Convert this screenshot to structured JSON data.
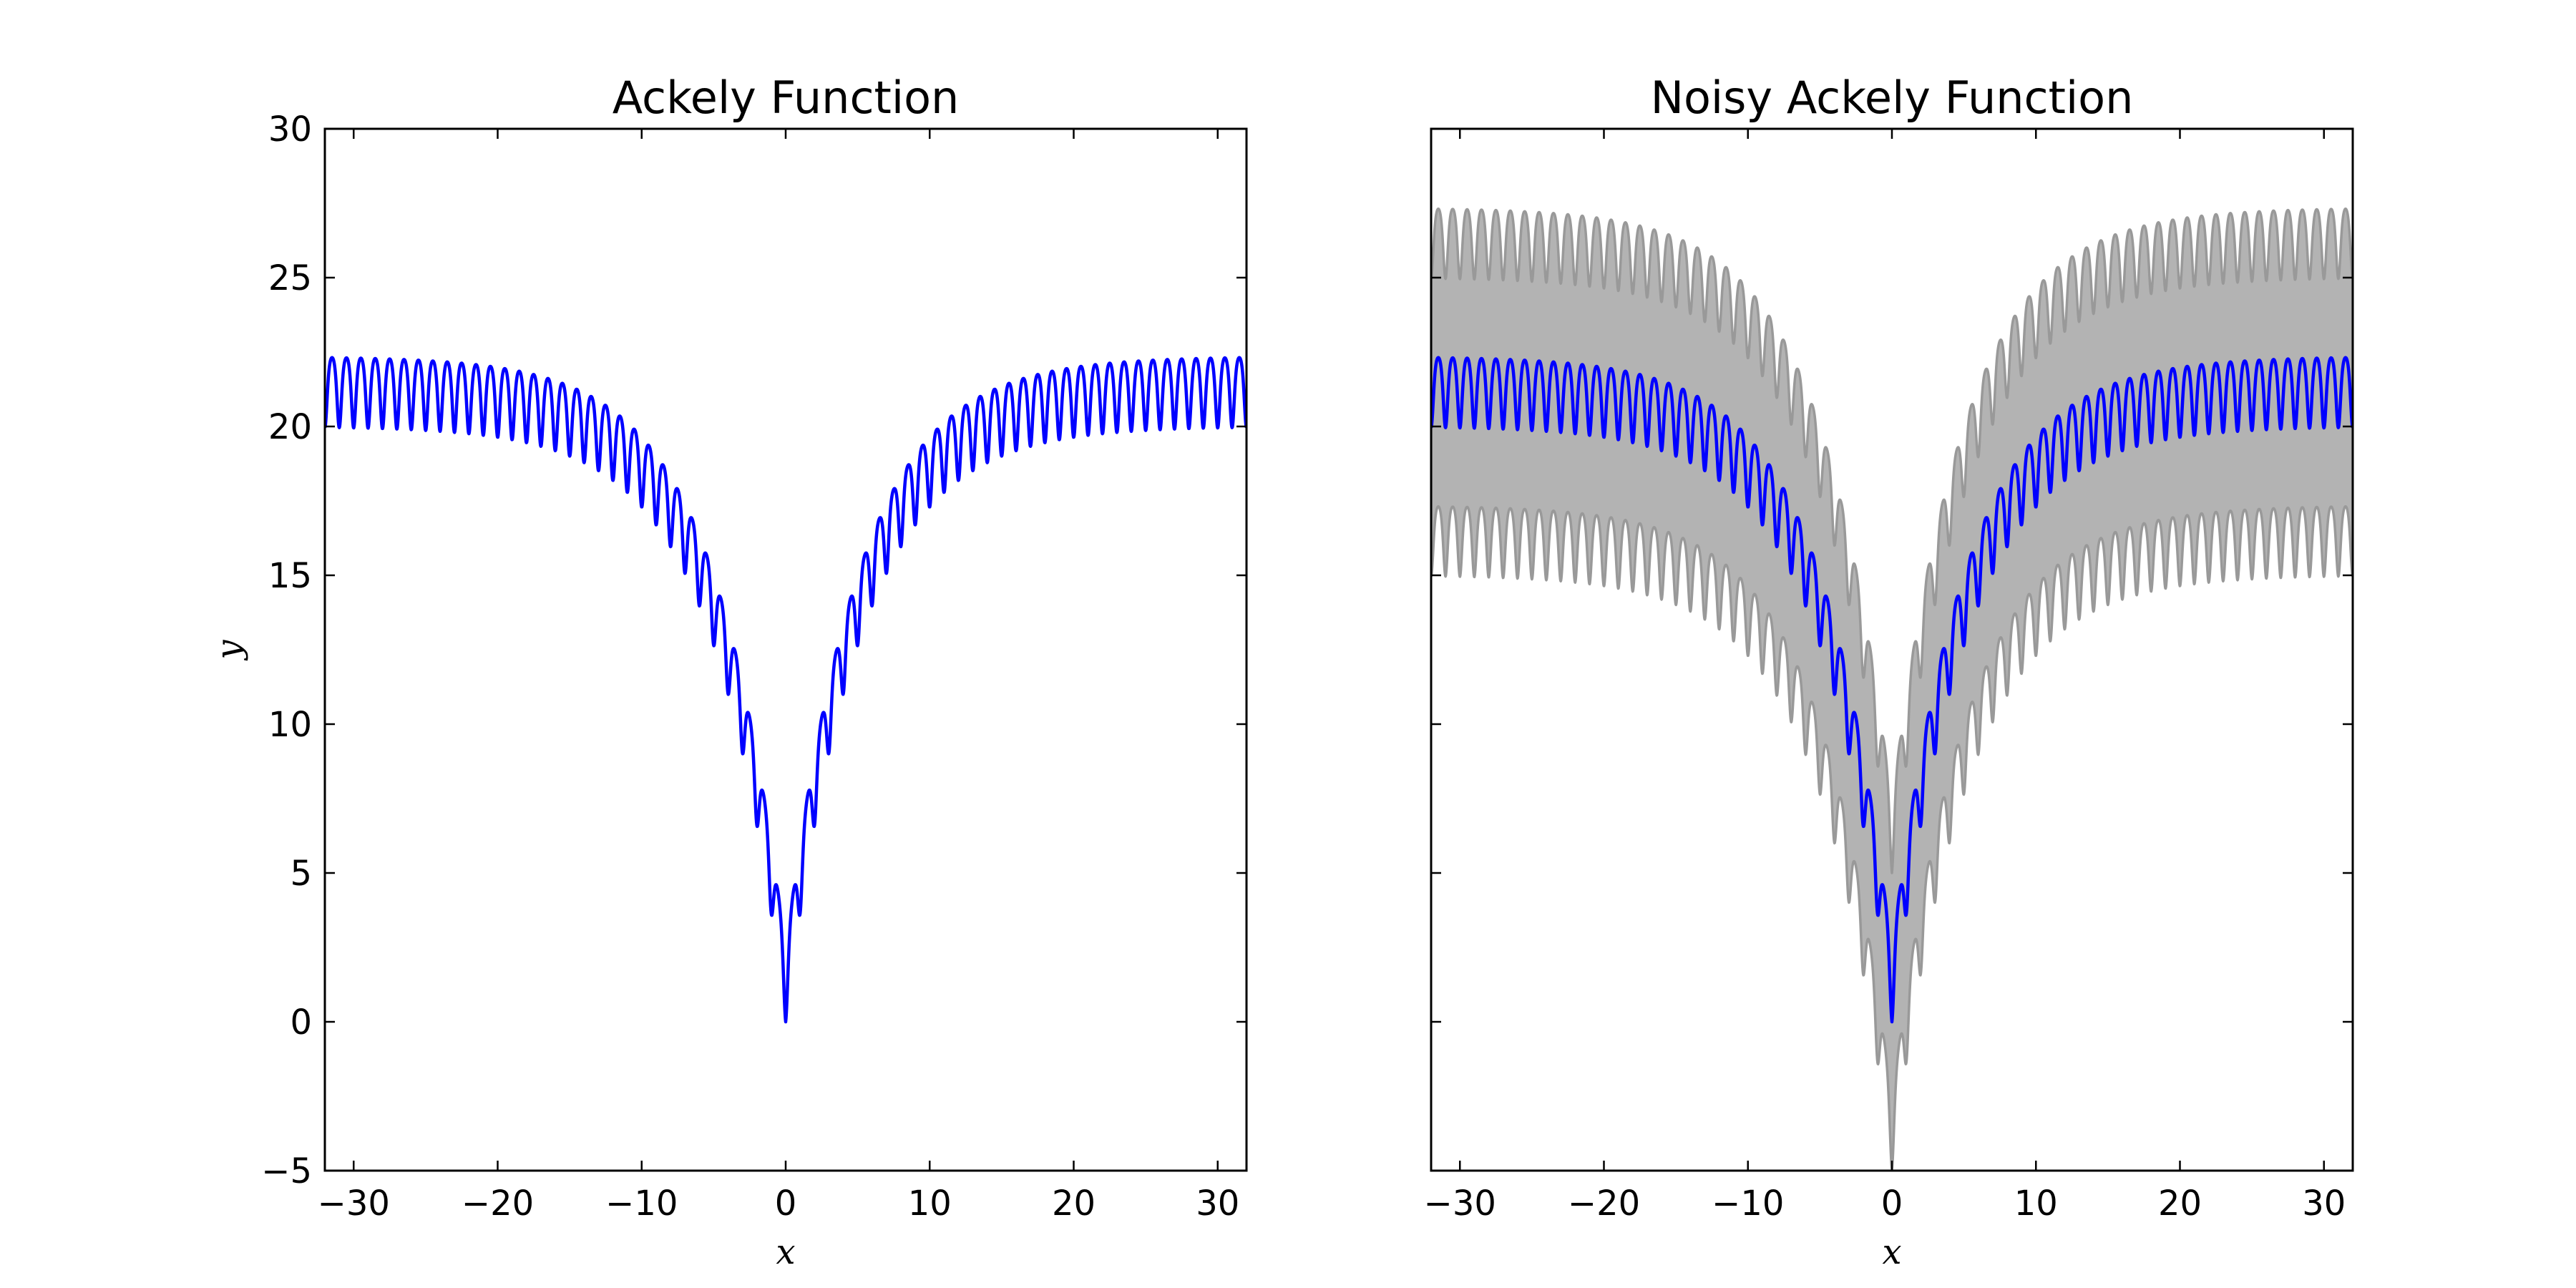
{
  "chart_data": [
    {
      "type": "line",
      "title": "Ackely Function",
      "xlabel": "x",
      "ylabel": "y",
      "xlim": [
        -32,
        32
      ],
      "ylim": [
        -5,
        30
      ],
      "xticks": [
        -30,
        -20,
        -10,
        0,
        10,
        20,
        30
      ],
      "yticks": [
        -5,
        0,
        5,
        10,
        15,
        20,
        25,
        30
      ],
      "xtick_labels": [
        "−30",
        "−20",
        "−10",
        "0",
        "10",
        "20",
        "30"
      ],
      "ytick_labels": [
        "−5",
        "0",
        "5",
        "10",
        "15",
        "20",
        "25",
        "30"
      ],
      "grid": false,
      "series": [
        {
          "color": "#0000ff",
          "x": [
            -32,
            -30,
            -25,
            -20,
            -15,
            -10,
            -8,
            -6,
            -4,
            -2,
            -1,
            0,
            1,
            2,
            4,
            6,
            8,
            10,
            15,
            20,
            25,
            30,
            32
          ],
          "y": [
            20.0,
            20.0,
            20.0,
            20.0,
            19.0,
            17.3,
            14.8,
            11.9,
            9.0,
            5.2,
            2.8,
            0.0,
            2.8,
            5.2,
            9.0,
            11.9,
            14.8,
            17.3,
            19.0,
            20.0,
            20.0,
            20.0,
            20.0
          ]
        }
      ]
    },
    {
      "type": "area",
      "title": "Noisy Ackely Function",
      "xlabel": "x",
      "xlim": [
        -32,
        32
      ],
      "ylim": [
        -5,
        30
      ],
      "xticks": [
        -30,
        -20,
        -10,
        0,
        10,
        20,
        30
      ],
      "xtick_labels": [
        "−30",
        "−20",
        "−10",
        "0",
        "10",
        "20",
        "30"
      ],
      "grid": false,
      "band": {
        "fill_color": "#b3b3b3",
        "edge_color": "#999999",
        "offset_from_mean": 5
      },
      "series": [
        {
          "color": "#0000ff",
          "x": [
            -32,
            -30,
            -25,
            -20,
            -15,
            -10,
            -8,
            -6,
            -4,
            -2,
            -1,
            0,
            1,
            2,
            4,
            6,
            8,
            10,
            15,
            20,
            25,
            30,
            32
          ],
          "y": [
            20.0,
            20.0,
            20.0,
            20.0,
            19.0,
            17.3,
            14.8,
            11.9,
            9.0,
            5.2,
            2.8,
            0.0,
            2.8,
            5.2,
            9.0,
            11.9,
            14.8,
            17.3,
            19.0,
            20.0,
            20.0,
            20.0,
            20.0
          ]
        }
      ]
    }
  ]
}
